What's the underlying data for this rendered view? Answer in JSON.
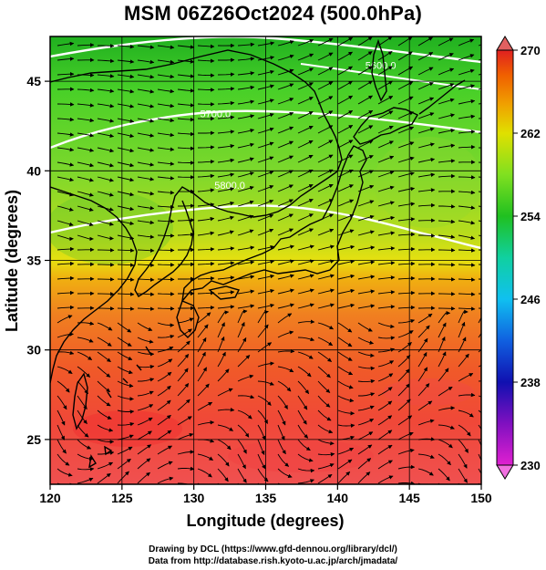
{
  "title": "MSM 06Z26Oct2024 (500.0hPa)",
  "x_axis": {
    "label": "Longitude (degrees)",
    "range": [
      120,
      150
    ],
    "ticks": [
      120,
      125,
      130,
      135,
      140,
      145,
      150
    ]
  },
  "y_axis": {
    "label": "Latitude  (degrees)",
    "range": [
      22.5,
      47.5
    ],
    "ticks": [
      25,
      30,
      35,
      40,
      45
    ]
  },
  "colorbar": {
    "range": [
      230,
      270
    ],
    "ticks": [
      230,
      238,
      246,
      254,
      262,
      270
    ],
    "colors": [
      "#e020d0",
      "#8010c0",
      "#1010b0",
      "#1060e0",
      "#10c0f0",
      "#10d0a0",
      "#20c020",
      "#80e020",
      "#e0e000",
      "#f0a000",
      "#f06000",
      "#e02020"
    ]
  },
  "contour_labels": [
    {
      "text": "5600.0",
      "lon": 143.0,
      "lat": 45.7
    },
    {
      "text": "5700.0",
      "lon": 131.5,
      "lat": 43.0
    },
    {
      "text": "5800.0",
      "lon": 132.5,
      "lat": 39.0
    }
  ],
  "grid": true,
  "credits": {
    "line1": "Drawing by DCL (https://www.gfd-dennou.org/library/dcl/)",
    "line2": "Data from http://database.rish.kyoto-u.ac.jp/arch/jmadata/"
  }
}
